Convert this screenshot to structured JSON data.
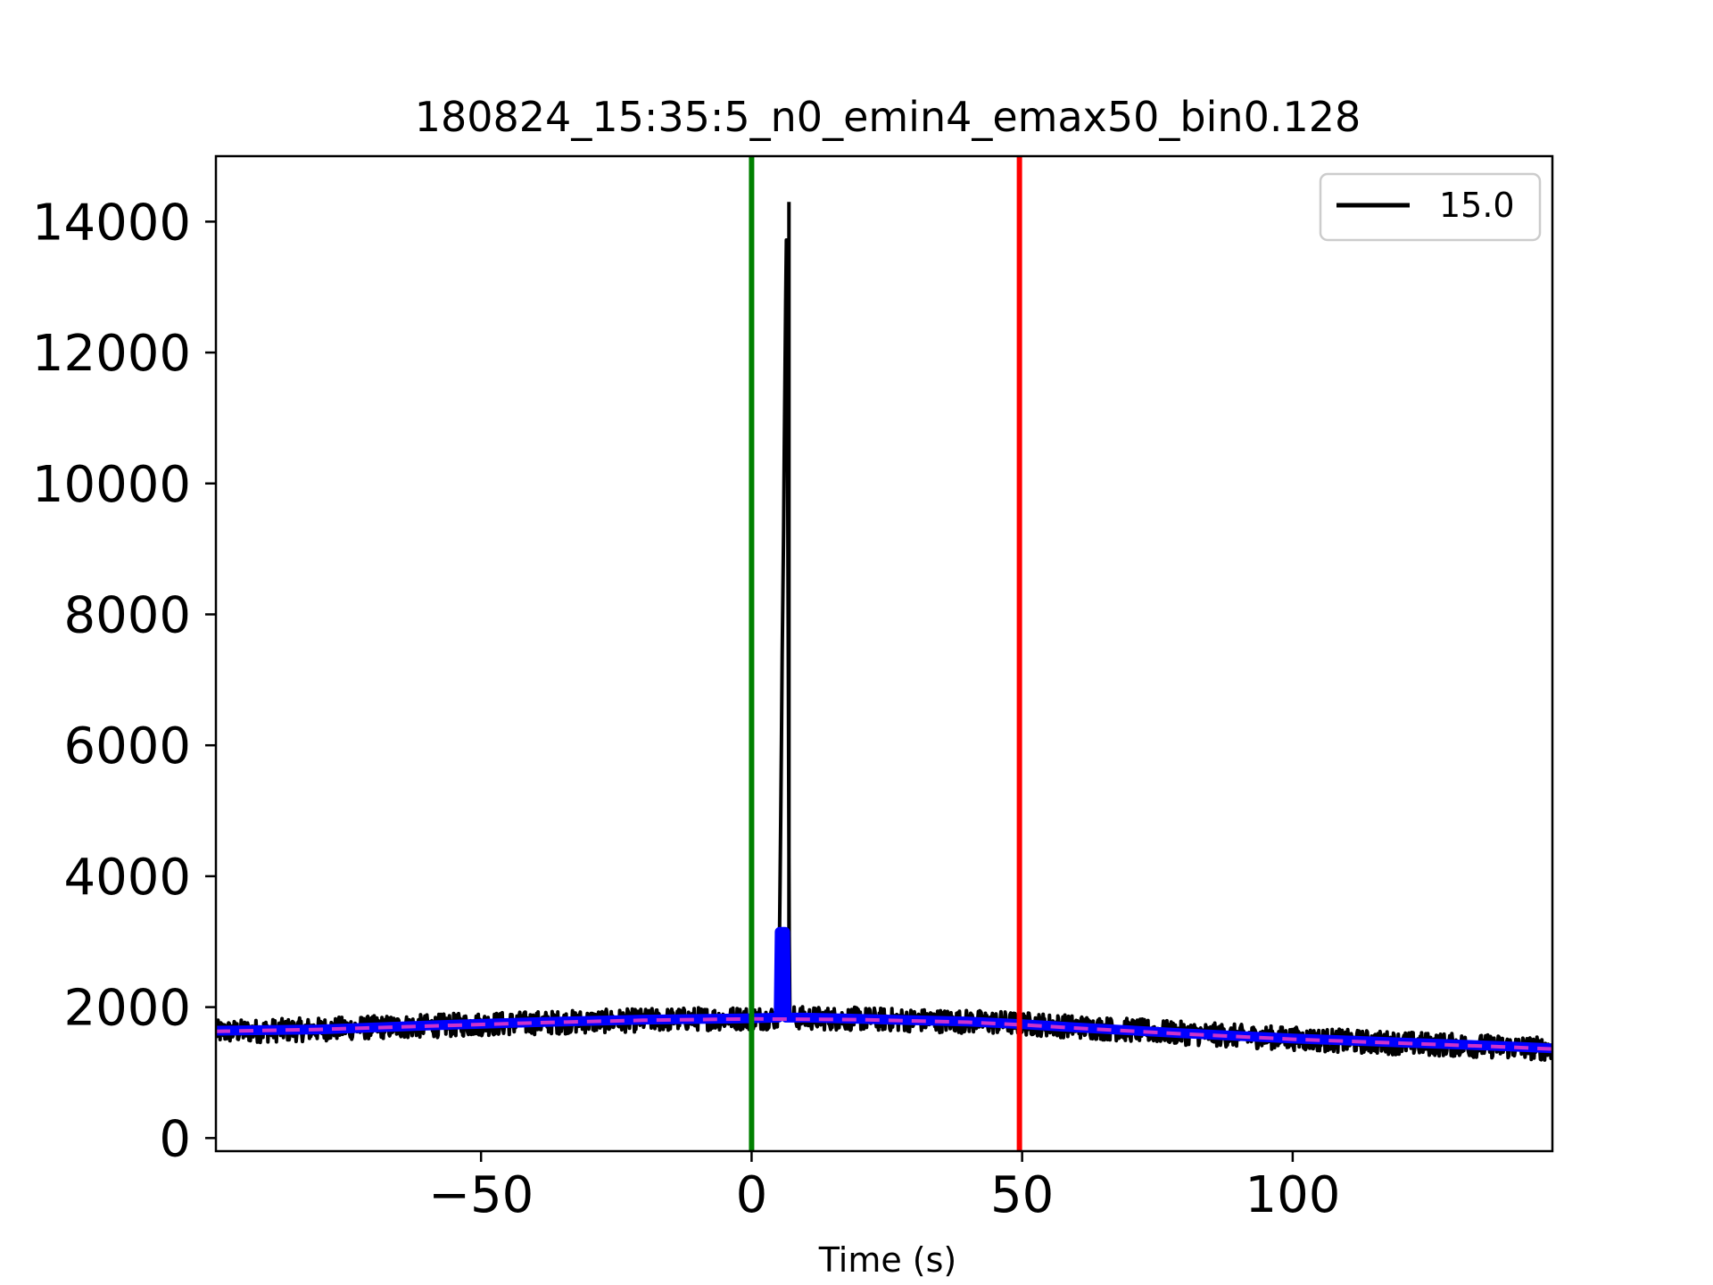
{
  "chart_data": {
    "type": "line",
    "title": "180824_15:35:5_n0_emin4_emax50_bin0.128",
    "xlabel": "Time (s)",
    "ylabel": "",
    "xlim": [
      -99,
      148
    ],
    "ylim": [
      -200,
      15000
    ],
    "xticks": [
      -50,
      0,
      50,
      100
    ],
    "xtick_labels": [
      "−50",
      "0",
      "50",
      "100"
    ],
    "yticks": [
      0,
      2000,
      4000,
      6000,
      8000,
      10000,
      12000,
      14000
    ],
    "ytick_labels": [
      "0",
      "2000",
      "4000",
      "6000",
      "8000",
      "10000",
      "12000",
      "14000"
    ],
    "grid": false,
    "legend": {
      "placement": "top-right",
      "entries": [
        {
          "label": "15.0",
          "color": "#000000"
        }
      ]
    },
    "series": [
      {
        "name": "15.0",
        "color": "#000000",
        "x": [
          -99,
          -90,
          -80,
          -70,
          -60,
          -50,
          -40,
          -30,
          -20,
          -10,
          0,
          5,
          6.5,
          7,
          7.5,
          10,
          20,
          30,
          40,
          50,
          60,
          70,
          80,
          90,
          100,
          110,
          120,
          130,
          140,
          148
        ],
        "values": [
          1620,
          1640,
          1660,
          1690,
          1710,
          1740,
          1760,
          1780,
          1800,
          1820,
          1830,
          1840,
          14300,
          1850,
          1840,
          1830,
          1820,
          1800,
          1780,
          1750,
          1700,
          1650,
          1600,
          1560,
          1520,
          1480,
          1450,
          1420,
          1390,
          1360
        ],
        "noise_amplitude": 180
      },
      {
        "name": "",
        "color": "#0000ff",
        "x": [
          -99,
          -80,
          -60,
          -40,
          -20,
          0,
          5,
          5.2,
          6.2,
          6.4,
          10,
          20,
          40,
          50,
          60,
          80,
          100,
          120,
          140,
          148
        ],
        "values": [
          1640,
          1660,
          1720,
          1770,
          1810,
          1830,
          1840,
          3150,
          3150,
          1840,
          1840,
          1820,
          1780,
          1740,
          1690,
          1600,
          1520,
          1460,
          1400,
          1370
        ]
      },
      {
        "name": "",
        "color": "#cc33cc",
        "style": "dashed",
        "x": [
          -99,
          -80,
          -60,
          -40,
          -20,
          0,
          20,
          40,
          50,
          60,
          80,
          100,
          120,
          140,
          148
        ],
        "values": [
          1630,
          1660,
          1710,
          1760,
          1800,
          1820,
          1810,
          1770,
          1730,
          1680,
          1590,
          1510,
          1450,
          1390,
          1360
        ]
      }
    ],
    "vlines": [
      {
        "x": 0,
        "color": "#008000"
      },
      {
        "x": 49.5,
        "color": "#ff0000"
      }
    ]
  }
}
